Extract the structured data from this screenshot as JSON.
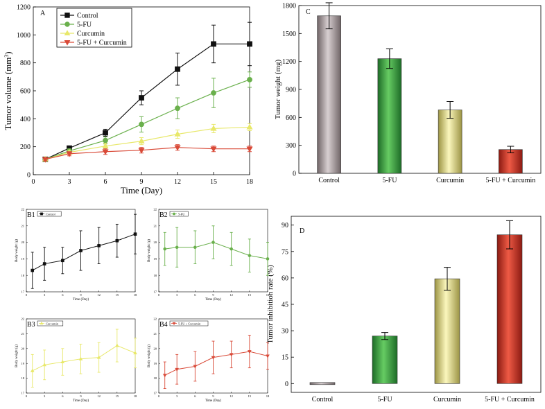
{
  "chart_data": [
    {
      "id": "A",
      "type": "line",
      "panel_label": "A",
      "xlabel": "Time (Day)",
      "ylabel_prefix": "Tumor volume (mm",
      "ylabel_sup": "3",
      "ylabel_suffix": ")",
      "xlim": [
        0,
        18
      ],
      "ylim": [
        0,
        1200
      ],
      "xticks": [
        0,
        3,
        6,
        9,
        12,
        15,
        18
      ],
      "yticks": [
        0,
        200,
        400,
        600,
        800,
        1000,
        1200
      ],
      "x": [
        1,
        3,
        6,
        9,
        12,
        15,
        18
      ],
      "series": [
        {
          "name": "Control",
          "color": "#111111",
          "marker": "square",
          "values": [
            110,
            190,
            300,
            550,
            755,
            935,
            935
          ],
          "errors": [
            10,
            15,
            25,
            50,
            115,
            135,
            155
          ]
        },
        {
          "name": "5-FU",
          "color": "#6ab04c",
          "marker": "circle",
          "values": [
            110,
            170,
            245,
            360,
            475,
            585,
            680
          ],
          "errors": [
            10,
            15,
            25,
            55,
            75,
            105,
            55
          ]
        },
        {
          "name": "Curcumin",
          "color": "#e8e86a",
          "marker": "triangle-up",
          "values": [
            110,
            160,
            205,
            240,
            290,
            330,
            340
          ],
          "errors": [
            10,
            15,
            20,
            25,
            30,
            30,
            25
          ]
        },
        {
          "name": "5-FU + Curcumin",
          "color": "#d94a38",
          "marker": "triangle-down",
          "values": [
            110,
            150,
            165,
            175,
            195,
            185,
            185
          ],
          "errors": [
            10,
            15,
            20,
            20,
            20,
            20,
            20
          ]
        }
      ]
    },
    {
      "id": "C",
      "type": "bar",
      "panel_label": "C",
      "ylabel": "Tumor weight (mg)",
      "categories": [
        "Control",
        "5-FU",
        "Curcumin",
        "5-FU + Curcumin"
      ],
      "values": [
        1690,
        1230,
        680,
        255
      ],
      "errors": [
        140,
        105,
        90,
        35
      ],
      "colors": [
        "#a6989b",
        "#3fa34a",
        "#f1eb86",
        "#d9392b"
      ],
      "ylim": [
        0,
        1800
      ],
      "yticks": [
        0,
        300,
        600,
        900,
        1200,
        1500,
        1800
      ]
    },
    {
      "id": "B1",
      "type": "line",
      "panel_label": "B1",
      "legend": "Control",
      "color": "#111111",
      "marker": "square",
      "x": [
        1,
        3,
        6,
        9,
        12,
        15,
        18
      ],
      "values": [
        18.3,
        18.7,
        18.9,
        19.5,
        19.8,
        20.1,
        20.5
      ],
      "errors": [
        1.1,
        1.0,
        0.8,
        1.2,
        1.1,
        1.0,
        1.2
      ],
      "xlim": [
        0,
        18
      ],
      "ylim": [
        17,
        22
      ],
      "xticks": [
        0,
        3,
        6,
        9,
        12,
        15,
        18
      ],
      "yticks": [
        17,
        18,
        19,
        20,
        21,
        22
      ],
      "xlabel": "Time (Day)",
      "ylabel": "Body weight (g)"
    },
    {
      "id": "B2",
      "type": "line",
      "panel_label": "B2",
      "legend": "5-FU",
      "color": "#6ab04c",
      "marker": "circle",
      "x": [
        1,
        3,
        6,
        9,
        12,
        15,
        18
      ],
      "values": [
        19.6,
        19.7,
        19.7,
        20.0,
        19.6,
        19.2,
        19.0
      ],
      "errors": [
        1.0,
        1.2,
        1.0,
        1.0,
        1.0,
        1.0,
        1.0
      ],
      "xlim": [
        0,
        18
      ],
      "ylim": [
        17,
        22
      ],
      "xticks": [
        0,
        3,
        6,
        9,
        12,
        15,
        18
      ],
      "yticks": [
        17,
        18,
        19,
        20,
        21,
        22
      ],
      "xlabel": "Time (Day)",
      "ylabel": "Body weight (g)"
    },
    {
      "id": "B3",
      "type": "line",
      "panel_label": "B3",
      "legend": "Curcumin",
      "color": "#e8e86a",
      "marker": "triangle-up",
      "x": [
        1,
        3,
        6,
        9,
        12,
        15,
        18
      ],
      "values": [
        18.5,
        18.9,
        19.1,
        19.3,
        19.4,
        20.2,
        19.7
      ],
      "errors": [
        1.1,
        1.0,
        0.9,
        1.0,
        1.0,
        1.1,
        1.0
      ],
      "xlim": [
        0,
        18
      ],
      "ylim": [
        17,
        22
      ],
      "xticks": [
        0,
        3,
        6,
        9,
        12,
        15,
        18
      ],
      "yticks": [
        17,
        18,
        19,
        20,
        21,
        22
      ],
      "xlabel": "Time (Day)",
      "ylabel": "Body weight (g)"
    },
    {
      "id": "B4",
      "type": "line",
      "panel_label": "B4",
      "legend": "5-FU + Curcumin",
      "color": "#d94a38",
      "marker": "triangle-down",
      "x": [
        1,
        3,
        6,
        9,
        12,
        15,
        18
      ],
      "values": [
        18.2,
        18.6,
        18.8,
        19.4,
        19.6,
        19.8,
        19.5
      ],
      "errors": [
        0.9,
        1.0,
        1.0,
        1.1,
        0.9,
        1.1,
        0.9
      ],
      "xlim": [
        0,
        18
      ],
      "ylim": [
        17,
        22
      ],
      "xticks": [
        0,
        3,
        6,
        9,
        12,
        15,
        18
      ],
      "yticks": [
        17,
        18,
        19,
        20,
        21,
        22
      ],
      "xlabel": "Time (Day)",
      "ylabel": "Body weight (g)"
    },
    {
      "id": "D",
      "type": "bar",
      "panel_label": "D",
      "ylabel": "Tumor inhibition rate (%)",
      "categories": [
        "Control",
        "5-FU",
        "Curcumin",
        "5-FU + Curcumin"
      ],
      "values": [
        0,
        27,
        59.5,
        84.5
      ],
      "errors": [
        0,
        2,
        6.5,
        8
      ],
      "colors": [
        "#a6989b",
        "#3fa34a",
        "#f1eb86",
        "#d9392b"
      ],
      "ylim": [
        -5,
        95
      ],
      "yticks": [
        0,
        15,
        30,
        45,
        60,
        75,
        90
      ]
    }
  ]
}
